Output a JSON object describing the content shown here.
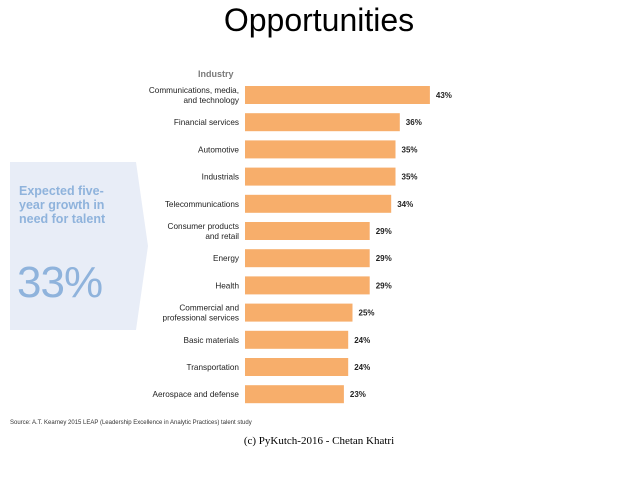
{
  "slide": {
    "title": "Opportunities",
    "footer": "(c) PyKutch-2016 - Chetan Khatri"
  },
  "callout": {
    "label": "Expected five-year growth in need for talent",
    "value": "33%",
    "color": "#8fb3dc",
    "background": "#e8edf7"
  },
  "source": "Source: A.T. Kearney 2015 LEAP (Leadership Excellence in Analytic Practices) talent study",
  "chart_data": {
    "type": "bar",
    "orientation": "horizontal",
    "ylabel": "Industry",
    "categories": [
      [
        "Communications, media,",
        "and technology"
      ],
      [
        "Financial services"
      ],
      [
        "Automotive"
      ],
      [
        "Industrials"
      ],
      [
        "Telecommunications"
      ],
      [
        "Consumer products",
        "and retail"
      ],
      [
        "Energy"
      ],
      [
        "Health"
      ],
      [
        "Commercial and",
        "professional services"
      ],
      [
        "Basic materials"
      ],
      [
        "Transportation"
      ],
      [
        "Aerospace and defense"
      ]
    ],
    "values": [
      43,
      36,
      35,
      35,
      34,
      29,
      29,
      29,
      25,
      24,
      24,
      23
    ],
    "value_labels": [
      "43%",
      "36%",
      "35%",
      "35%",
      "34%",
      "29%",
      "29%",
      "29%",
      "25%",
      "24%",
      "24%",
      "23%"
    ],
    "bar_color": "#f7ae6b",
    "grid": false,
    "legend": "none"
  }
}
